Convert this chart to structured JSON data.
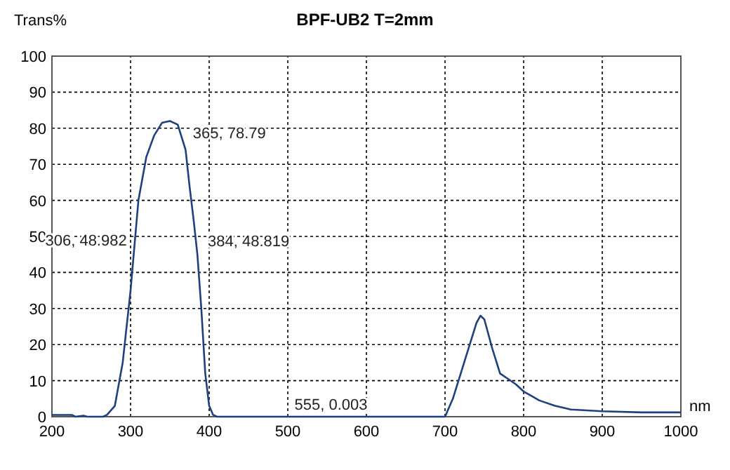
{
  "chart_data": {
    "type": "line",
    "title": "BPF-UB2  T=2mm",
    "ylabel": "Trans%",
    "xlabel": "nm",
    "x": [
      200,
      225,
      230,
      240,
      245,
      265,
      270,
      280,
      290,
      300,
      310,
      320,
      330,
      340,
      350,
      360,
      370,
      375,
      380,
      385,
      390,
      395,
      400,
      405,
      410,
      550,
      700,
      710,
      720,
      730,
      740,
      745,
      750,
      760,
      770,
      780,
      790,
      800,
      820,
      840,
      860,
      900,
      950,
      1000
    ],
    "series": [
      {
        "color": "#1f3f7f",
        "values": [
          0.5,
          0.5,
          0,
          0.3,
          0,
          0,
          0.5,
          3,
          15,
          35,
          60,
          72,
          78,
          81.5,
          82,
          81,
          74,
          64,
          55,
          45,
          30,
          12,
          3,
          0.5,
          0,
          0,
          0,
          5,
          12,
          19,
          26,
          28,
          27,
          19,
          12,
          10.5,
          9,
          7,
          4.5,
          3,
          2,
          1.5,
          1.2,
          1.2
        ]
      }
    ],
    "xlim": [
      200,
      1000
    ],
    "xticks": [
      200,
      300,
      400,
      500,
      600,
      700,
      800,
      900,
      1000
    ],
    "ylim": [
      0,
      100
    ],
    "yticks": [
      0,
      10,
      20,
      30,
      40,
      50,
      60,
      70,
      80,
      90,
      100
    ],
    "grid": true,
    "marker": "none",
    "line_style": "solid",
    "annotations": [
      {
        "text": "365, 78.79",
        "x": 365,
        "y": 78.79
      },
      {
        "text": "306, 48.982",
        "x": 306,
        "y": 48.982
      },
      {
        "text": "384, 48.819",
        "x": 384,
        "y": 48.819
      },
      {
        "text": "555, 0.003",
        "x": 555,
        "y": 0.003
      }
    ]
  }
}
